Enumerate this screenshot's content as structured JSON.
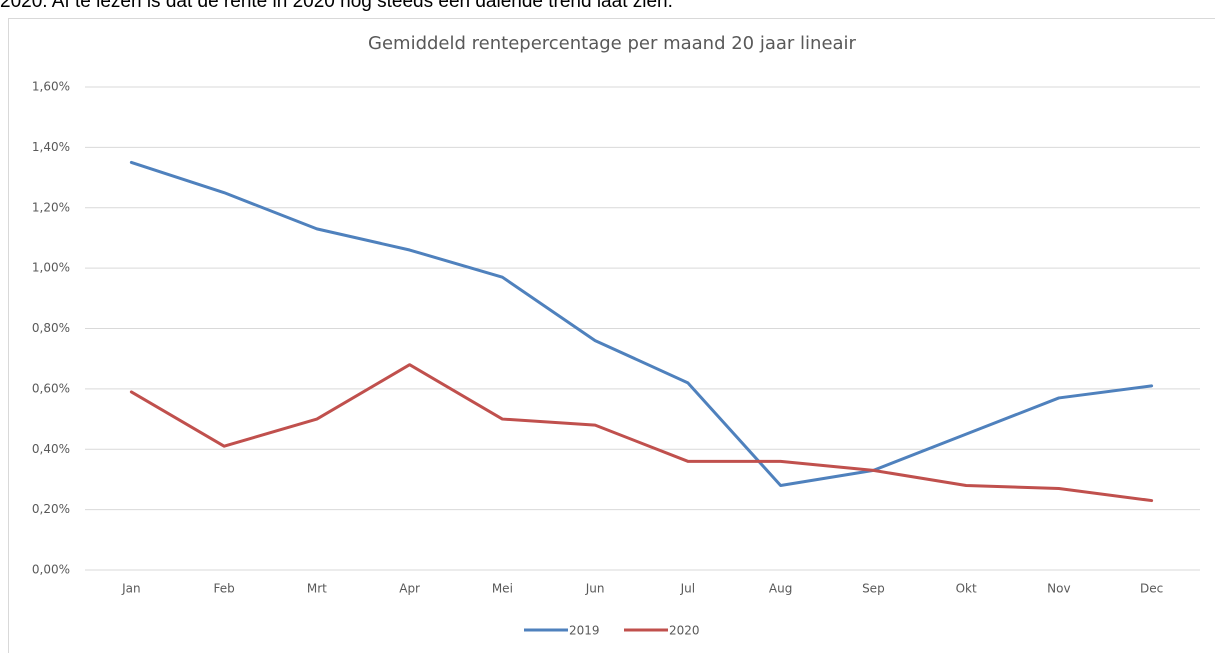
{
  "intro_text": "2020. Af te lezen is dat de rente in 2020 nog steeds een dalende trend laat zien.",
  "chart_data": {
    "type": "line",
    "title": "Gemiddeld rentepercentage per maand 20 jaar lineair",
    "categories": [
      "Jan",
      "Feb",
      "Mrt",
      "Apr",
      "Mei",
      "Jun",
      "Jul",
      "Aug",
      "Sep",
      "Okt",
      "Nov",
      "Dec"
    ],
    "series": [
      {
        "name": "2019",
        "color": "#4f81bd",
        "values": [
          1.35,
          1.25,
          1.13,
          1.06,
          0.97,
          0.76,
          0.62,
          0.28,
          0.33,
          0.45,
          0.57,
          0.61
        ]
      },
      {
        "name": "2020",
        "color": "#c0504d",
        "values": [
          0.59,
          0.41,
          0.5,
          0.68,
          0.5,
          0.48,
          0.36,
          0.36,
          0.33,
          0.28,
          0.27,
          0.23
        ]
      }
    ],
    "ylim": [
      0,
      1.6
    ],
    "yticks": [
      {
        "value": 0,
        "label": "0,00%"
      },
      {
        "value": 0.2,
        "label": "0,20%"
      },
      {
        "value": 0.4,
        "label": "0,40%"
      },
      {
        "value": 0.6,
        "label": "0,60%"
      },
      {
        "value": 0.8,
        "label": "0,80%"
      },
      {
        "value": 1.0,
        "label": "1,00%"
      },
      {
        "value": 1.2,
        "label": "1,20%"
      },
      {
        "value": 1.4,
        "label": "1,40%"
      },
      {
        "value": 1.6,
        "label": "1,60%"
      }
    ],
    "grid": true,
    "legend": "bottom"
  }
}
